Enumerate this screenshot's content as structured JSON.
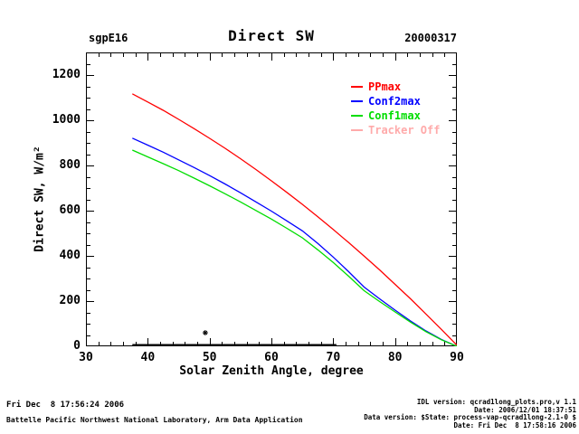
{
  "header": {
    "site_label": "sgpE16",
    "title": "Direct SW",
    "date_label": "20000317"
  },
  "chart_data": {
    "type": "line",
    "title": "Direct SW",
    "site": "sgpE16",
    "date": "20000317",
    "xlabel": "Solar Zenith Angle, degree",
    "ylabel": "Direct SW, W/m²",
    "xlim": [
      30,
      90
    ],
    "ylim": [
      0,
      1300
    ],
    "x_major_ticks": [
      30,
      40,
      50,
      60,
      70,
      80,
      90
    ],
    "x_minor_step": 2,
    "y_major_ticks": [
      0,
      200,
      400,
      600,
      800,
      1000,
      1200
    ],
    "y_minor_step": 50,
    "grid": false,
    "legend_position": "inside-upper-right",
    "sza": [
      37.5,
      40,
      42.5,
      45,
      47.5,
      50,
      52.5,
      55,
      57.5,
      60,
      62.5,
      65,
      67.5,
      70,
      72.5,
      75,
      77.5,
      80,
      82.5,
      85,
      87.5,
      90
    ],
    "series": [
      {
        "name": "PPmax",
        "color": "#ff0000",
        "values": [
          1117,
          1081,
          1044,
          1004,
          963,
          920,
          876,
          830,
          782,
          732,
          681,
          628,
          573,
          517,
          459,
          399,
          338,
          274,
          210,
          143,
          75,
          5
        ]
      },
      {
        "name": "Conf2max",
        "color": "#0000ff",
        "values": [
          921,
          890,
          859,
          825,
          791,
          755,
          718,
          679,
          639,
          598,
          555,
          511,
          455,
          395,
          330,
          262,
          210,
          160,
          112,
          68,
          30,
          0
        ]
      },
      {
        "name": "Conf1max",
        "color": "#00dd00",
        "values": [
          868,
          838,
          808,
          777,
          744,
          710,
          675,
          639,
          601,
          563,
          522,
          480,
          427,
          371,
          310,
          246,
          198,
          152,
          107,
          65,
          29,
          0
        ]
      },
      {
        "name": "Tracker Off",
        "color": "#ffaaaa",
        "values": null
      }
    ],
    "extras": {
      "zero_line": {
        "color": "#000000",
        "x_start": 37.5,
        "x_end": 70.5,
        "value": 4,
        "thickness": 3
      },
      "asterisk_marker": {
        "symbol": "*",
        "x": 49.3,
        "y": 60,
        "color": "#000000"
      }
    }
  },
  "legend": {
    "items": [
      {
        "label": "PPmax",
        "color": "#ff0000"
      },
      {
        "label": "Conf2max",
        "color": "#0000ff"
      },
      {
        "label": "Conf1max",
        "color": "#00dd00"
      },
      {
        "label": "Tracker Off",
        "color": "#ffaaaa"
      }
    ]
  },
  "footer": {
    "left_line1": "Fri Dec  8 17:56:24 2006",
    "left_line2": "Battelle Pacific Northwest National Laboratory, Arm Data Application",
    "right_lines": [
      "IDL version: qcrad1long_plots.pro,v 1.1",
      "Date: 2006/12/01 18:37:51",
      "Data version: $State: process-vap-qcrad1long-2.1-0 $",
      "Date: Fri Dec  8 17:58:16 2006"
    ]
  }
}
